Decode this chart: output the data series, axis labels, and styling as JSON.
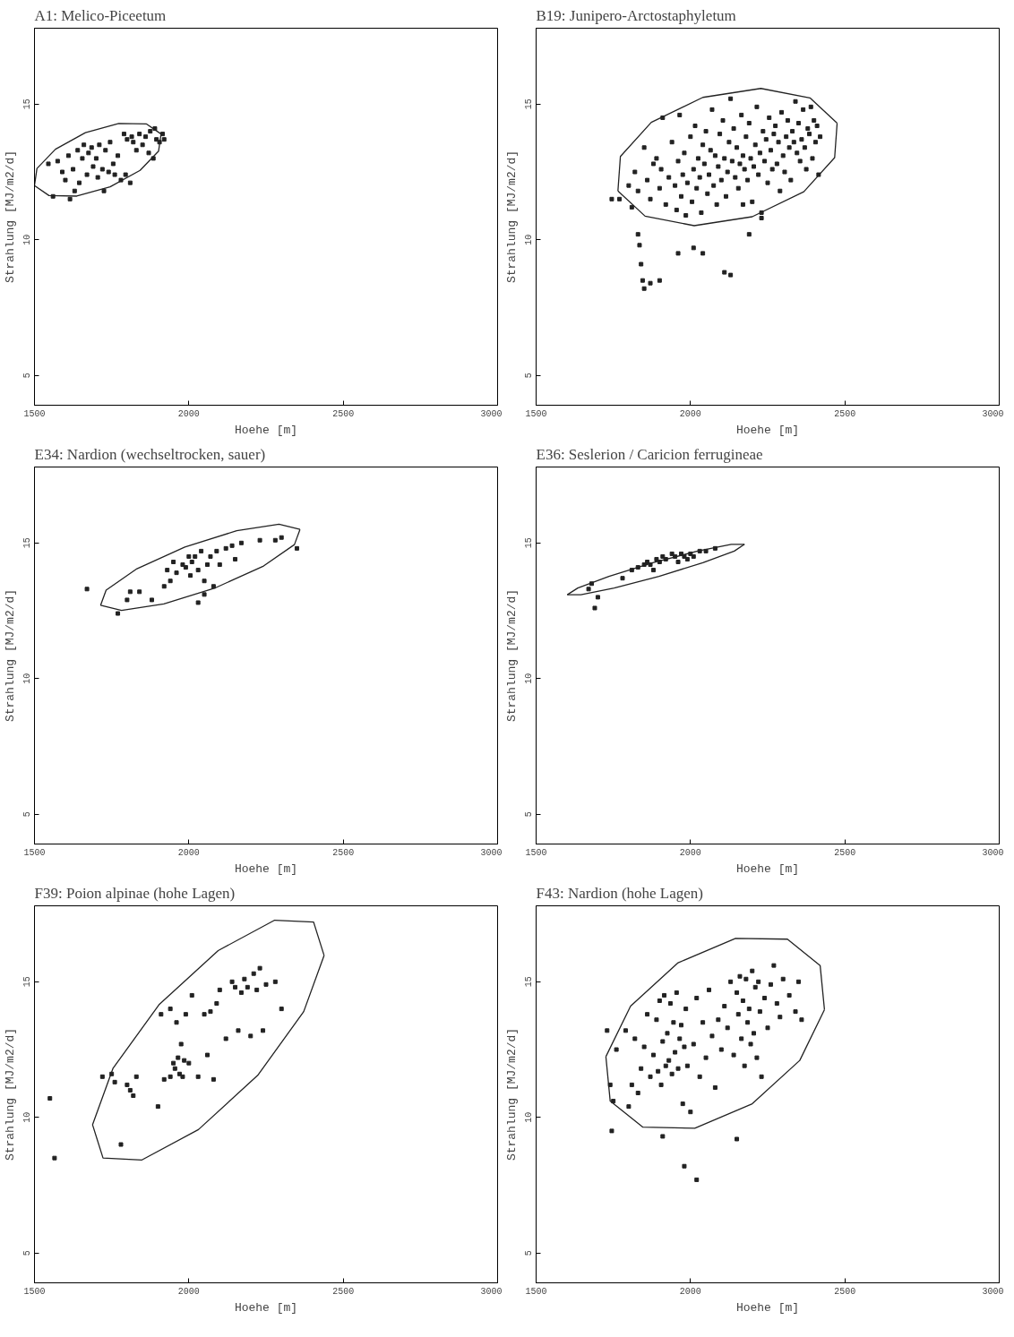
{
  "chart_data": [
    {
      "type": "scatter",
      "title": "A1: Melico-Piceetum",
      "xlabel": "Hoehe [m]",
      "ylabel": "Strahlung [MJ/m2/d]",
      "xlim": [
        1500,
        3000
      ],
      "ylim": [
        3.9,
        17.8
      ],
      "xticks": [
        1500,
        2000,
        2500,
        3000
      ],
      "yticks": [
        5,
        10,
        15
      ],
      "grid": false,
      "marker": "square",
      "series": [
        {
          "type": "scatter",
          "color": "#222222",
          "x": [
            1545,
            1560,
            1575,
            1590,
            1600,
            1610,
            1615,
            1625,
            1630,
            1640,
            1645,
            1655,
            1660,
            1670,
            1675,
            1685,
            1690,
            1700,
            1705,
            1710,
            1720,
            1725,
            1730,
            1740,
            1745,
            1755,
            1760,
            1770,
            1780,
            1790,
            1795,
            1800,
            1810,
            1815,
            1820,
            1830,
            1840,
            1850,
            1860,
            1870,
            1875,
            1885,
            1890,
            1895,
            1905,
            1915,
            1920
          ],
          "values": [
            12.8,
            11.6,
            12.9,
            12.5,
            12.2,
            13.1,
            11.5,
            12.6,
            11.8,
            13.3,
            12.1,
            13.0,
            13.5,
            12.4,
            13.2,
            13.4,
            12.7,
            13.0,
            12.3,
            13.5,
            12.6,
            11.8,
            13.3,
            12.5,
            13.6,
            12.8,
            12.4,
            13.1,
            12.2,
            13.9,
            12.4,
            13.7,
            12.1,
            13.8,
            13.6,
            13.3,
            13.9,
            13.5,
            13.8,
            13.2,
            14.0,
            13.0,
            14.1,
            13.7,
            13.6,
            13.9,
            13.7
          ]
        },
        {
          "type": "line",
          "marker": "none",
          "color": "#222222",
          "x": [
            1500,
            1508,
            1568,
            1665,
            1773,
            1863,
            1910
          ],
          "values": [
            12.0,
            12.63,
            13.34,
            13.95,
            14.29,
            14.27,
            13.9
          ]
        },
        {
          "type": "line",
          "marker": "none",
          "color": "#222222",
          "x": [
            1500,
            1547,
            1637,
            1745,
            1842,
            1902,
            1910
          ],
          "values": [
            12.0,
            11.63,
            11.61,
            11.95,
            12.56,
            13.27,
            13.9
          ]
        }
      ]
    },
    {
      "type": "scatter",
      "title": "B19: Junipero-Arctostaphyletum",
      "xlabel": "Hoehe [m]",
      "ylabel": "Strahlung [MJ/m2/d]",
      "xlim": [
        1500,
        3000
      ],
      "ylim": [
        3.9,
        17.8
      ],
      "xticks": [
        1500,
        2000,
        2500,
        3000
      ],
      "yticks": [
        5,
        10,
        15
      ],
      "grid": false,
      "marker": "square",
      "series": [
        {
          "type": "scatter",
          "color": "#222222",
          "x": [
            1800,
            1810,
            1820,
            1830,
            1850,
            1860,
            1870,
            1880,
            1890,
            1900,
            1905,
            1910,
            1920,
            1930,
            1940,
            1950,
            1955,
            1960,
            1965,
            1970,
            1975,
            1980,
            1985,
            1990,
            2000,
            2005,
            2010,
            2015,
            2020,
            2025,
            2030,
            2035,
            2040,
            2045,
            2050,
            2055,
            2060,
            2065,
            2070,
            2075,
            2080,
            2085,
            2090,
            2095,
            2100,
            2105,
            2110,
            2115,
            2120,
            2125,
            2130,
            2135,
            2140,
            2145,
            2150,
            2155,
            2160,
            2165,
            2170,
            2175,
            2180,
            2185,
            2190,
            2195,
            2200,
            2205,
            2210,
            2215,
            2220,
            2225,
            2230,
            2235,
            2240,
            2245,
            2250,
            2255,
            2260,
            2265,
            2270,
            2275,
            2280,
            2285,
            2290,
            2295,
            2300,
            2305,
            2310,
            2315,
            2320,
            2325,
            2330,
            2335,
            2340,
            2345,
            2350,
            2355,
            2360,
            2365,
            2370,
            2375,
            2380,
            2385,
            2390,
            2395,
            2400,
            2405,
            2410,
            2415,
            2420,
            2230,
            2170,
            1830,
            1835,
            1840,
            1845,
            1850,
            1870,
            1900,
            1960,
            2010,
            2040,
            2110,
            2130,
            2190,
            1745,
            1770
          ],
          "values": [
            12.0,
            11.2,
            12.5,
            11.8,
            13.4,
            12.2,
            11.5,
            12.8,
            13.0,
            11.9,
            12.6,
            14.5,
            11.3,
            12.3,
            13.6,
            12.0,
            11.1,
            12.9,
            14.6,
            11.6,
            12.4,
            13.2,
            10.9,
            12.1,
            13.8,
            11.4,
            12.6,
            14.2,
            11.9,
            13.0,
            12.3,
            11.0,
            13.5,
            12.8,
            14.0,
            11.7,
            12.4,
            13.3,
            14.8,
            12.0,
            13.1,
            11.3,
            12.7,
            13.9,
            12.2,
            14.4,
            13.0,
            11.6,
            12.5,
            13.6,
            15.2,
            12.9,
            14.1,
            12.3,
            13.4,
            11.9,
            12.8,
            14.6,
            13.1,
            12.6,
            13.8,
            12.2,
            14.3,
            13.0,
            11.4,
            12.7,
            13.5,
            14.9,
            12.4,
            13.2,
            11.0,
            14.0,
            12.9,
            13.7,
            12.1,
            14.5,
            13.3,
            12.6,
            13.9,
            14.2,
            12.8,
            13.6,
            11.8,
            14.7,
            13.1,
            12.5,
            13.8,
            14.4,
            13.4,
            12.2,
            14.0,
            13.6,
            15.1,
            13.2,
            14.3,
            12.9,
            13.7,
            14.8,
            13.4,
            12.6,
            14.1,
            13.9,
            14.9,
            13.0,
            14.4,
            13.6,
            14.2,
            12.4,
            13.8,
            10.8,
            11.3,
            10.2,
            9.8,
            9.1,
            8.5,
            8.2,
            8.4,
            8.5,
            9.5,
            9.7,
            9.5,
            8.8,
            8.7,
            10.2,
            11.5,
            11.5
          ]
        },
        {
          "type": "line",
          "marker": "none",
          "color": "#222222",
          "x": [
            1765,
            1773,
            1873,
            2040,
            2228,
            2387,
            2475
          ],
          "values": [
            11.8,
            13.07,
            14.33,
            15.25,
            15.58,
            15.23,
            14.3
          ]
        },
        {
          "type": "line",
          "marker": "none",
          "color": "#222222",
          "x": [
            1765,
            1853,
            2012,
            2200,
            2367,
            2467,
            2475
          ],
          "values": [
            11.8,
            10.87,
            10.52,
            10.85,
            11.77,
            13.03,
            14.3
          ]
        }
      ]
    },
    {
      "type": "scatter",
      "title": "E34: Nardion (wechseltrocken, sauer)",
      "xlabel": "Hoehe [m]",
      "ylabel": "Strahlung [MJ/m2/d]",
      "xlim": [
        1500,
        3000
      ],
      "ylim": [
        3.9,
        17.8
      ],
      "xticks": [
        1500,
        2000,
        2500,
        3000
      ],
      "yticks": [
        5,
        10,
        15
      ],
      "grid": false,
      "marker": "square",
      "series": [
        {
          "type": "scatter",
          "color": "#222222",
          "x": [
            1670,
            1770,
            1800,
            1810,
            1840,
            1880,
            1920,
            1930,
            1940,
            1950,
            1960,
            1980,
            1990,
            2000,
            2005,
            2010,
            2020,
            2030,
            2030,
            2040,
            2050,
            2050,
            2060,
            2070,
            2080,
            2090,
            2100,
            2120,
            2140,
            2150,
            2170,
            2230,
            2280,
            2300,
            2350
          ],
          "values": [
            13.3,
            12.4,
            12.9,
            13.2,
            13.2,
            12.9,
            13.4,
            14.0,
            13.6,
            14.3,
            13.9,
            14.2,
            14.1,
            14.5,
            13.8,
            14.3,
            14.5,
            14.0,
            12.8,
            14.7,
            13.6,
            13.1,
            14.2,
            14.5,
            13.4,
            14.7,
            14.2,
            14.8,
            14.9,
            14.4,
            15.0,
            15.1,
            15.1,
            15.2,
            14.8
          ]
        },
        {
          "type": "line",
          "marker": "none",
          "color": "#222222",
          "x": [
            1714,
            1732,
            1832,
            1987,
            2155,
            2292,
            2360
          ],
          "values": [
            12.7,
            13.26,
            14.05,
            14.85,
            15.45,
            15.69,
            15.5
          ]
        },
        {
          "type": "line",
          "marker": "none",
          "color": "#222222",
          "x": [
            1714,
            1782,
            1919,
            2087,
            2242,
            2342,
            2360
          ],
          "values": [
            12.7,
            12.51,
            12.75,
            13.35,
            14.15,
            14.94,
            15.5
          ]
        }
      ]
    },
    {
      "type": "scatter",
      "title": "E36: Seslerion / Caricion ferrugineae",
      "xlabel": "Hoehe [m]",
      "ylabel": "Strahlung [MJ/m2/d]",
      "xlim": [
        1500,
        3000
      ],
      "ylim": [
        3.9,
        17.8
      ],
      "xticks": [
        1500,
        2000,
        2500,
        3000
      ],
      "yticks": [
        5,
        10,
        15
      ],
      "grid": false,
      "marker": "square",
      "series": [
        {
          "type": "scatter",
          "color": "#222222",
          "x": [
            1670,
            1680,
            1690,
            1700,
            1780,
            1810,
            1830,
            1850,
            1860,
            1870,
            1880,
            1890,
            1900,
            1910,
            1920,
            1940,
            1950,
            1960,
            1970,
            1980,
            1990,
            2000,
            2010,
            2030,
            2050,
            2080
          ],
          "values": [
            13.3,
            13.5,
            12.6,
            13.0,
            13.7,
            14.0,
            14.1,
            14.2,
            14.3,
            14.2,
            14.0,
            14.4,
            14.3,
            14.5,
            14.4,
            14.6,
            14.5,
            14.3,
            14.6,
            14.5,
            14.4,
            14.6,
            14.5,
            14.7,
            14.7,
            14.8
          ]
        },
        {
          "type": "line",
          "marker": "none",
          "color": "#222222",
          "x": [
            1601,
            1635,
            1736,
            1878,
            2023,
            2132,
            2175
          ],
          "values": [
            13.09,
            13.34,
            13.77,
            14.27,
            14.7,
            14.95,
            14.95
          ]
        },
        {
          "type": "line",
          "marker": "none",
          "color": "#222222",
          "x": [
            1601,
            1645,
            1753,
            1898,
            2040,
            2142,
            2175
          ],
          "values": [
            13.09,
            13.09,
            13.34,
            13.77,
            14.27,
            14.7,
            14.95
          ]
        }
      ]
    },
    {
      "type": "scatter",
      "title": "F39: Poion alpinae (hohe Lagen)",
      "xlabel": "Hoehe [m]",
      "ylabel": "Strahlung [MJ/m2/d]",
      "xlim": [
        1500,
        3000
      ],
      "ylim": [
        3.9,
        17.8
      ],
      "xticks": [
        1500,
        2000,
        2500,
        3000
      ],
      "yticks": [
        5,
        10,
        15
      ],
      "grid": false,
      "marker": "square",
      "series": [
        {
          "type": "scatter",
          "color": "#222222",
          "x": [
            1550,
            1565,
            1720,
            1750,
            1760,
            1780,
            1800,
            1810,
            1820,
            1830,
            1900,
            1910,
            1920,
            1940,
            1940,
            1950,
            1955,
            1960,
            1965,
            1970,
            1975,
            1980,
            1985,
            1990,
            2000,
            2010,
            2030,
            2050,
            2060,
            2070,
            2080,
            2090,
            2100,
            2120,
            2140,
            2150,
            2160,
            2170,
            2180,
            2190,
            2200,
            2210,
            2220,
            2230,
            2240,
            2250,
            2280,
            2300
          ],
          "values": [
            10.7,
            8.5,
            11.5,
            11.6,
            11.3,
            9.0,
            11.2,
            11.0,
            10.8,
            11.5,
            10.4,
            13.8,
            11.4,
            11.5,
            14.0,
            12.0,
            11.8,
            13.5,
            12.2,
            11.6,
            12.7,
            11.5,
            12.1,
            13.8,
            12.0,
            14.5,
            11.5,
            13.8,
            12.3,
            13.9,
            11.4,
            14.2,
            14.7,
            12.9,
            15.0,
            14.8,
            13.2,
            14.6,
            15.1,
            14.8,
            13.0,
            15.3,
            14.7,
            15.5,
            13.2,
            14.9,
            15.0,
            14.0
          ]
        },
        {
          "type": "line",
          "marker": "none",
          "color": "#222222",
          "x": [
            1688,
            1754,
            1903,
            2095,
            2278,
            2404,
            2438
          ],
          "values": [
            9.73,
            11.8,
            14.15,
            16.15,
            17.27,
            17.2,
            15.97
          ]
        },
        {
          "type": "line",
          "marker": "none",
          "color": "#222222",
          "x": [
            1688,
            1722,
            1848,
            2031,
            2223,
            2372,
            2438
          ],
          "values": [
            9.73,
            8.5,
            8.43,
            9.55,
            11.55,
            13.9,
            15.97
          ]
        }
      ]
    },
    {
      "type": "scatter",
      "title": "F43: Nardion (hohe Lagen)",
      "xlabel": "Hoehe [m]",
      "ylabel": "Strahlung [MJ/m2/d]",
      "xlim": [
        1500,
        3000
      ],
      "ylim": [
        3.9,
        17.8
      ],
      "xticks": [
        1500,
        2000,
        2500,
        3000
      ],
      "yticks": [
        5,
        10,
        15
      ],
      "grid": false,
      "marker": "square",
      "series": [
        {
          "type": "scatter",
          "color": "#222222",
          "x": [
            1760,
            1790,
            1800,
            1810,
            1820,
            1830,
            1840,
            1850,
            1860,
            1870,
            1880,
            1890,
            1895,
            1900,
            1905,
            1910,
            1915,
            1920,
            1925,
            1930,
            1935,
            1940,
            1945,
            1950,
            1955,
            1960,
            1965,
            1970,
            1975,
            1980,
            1985,
            1990,
            2000,
            2010,
            2020,
            2030,
            2040,
            2050,
            2060,
            2070,
            2080,
            2090,
            2100,
            2110,
            2120,
            2130,
            2140,
            2150,
            2155,
            2160,
            2165,
            2170,
            2175,
            2180,
            2185,
            2190,
            2195,
            2200,
            2205,
            2210,
            2215,
            2220,
            2225,
            2230,
            2240,
            2250,
            2260,
            2270,
            2280,
            2290,
            2300,
            2320,
            2340,
            2350,
            2360,
            1730,
            1740,
            1745,
            1750,
            1980,
            2020,
            2150,
            1910
          ],
          "values": [
            12.5,
            13.2,
            10.4,
            11.2,
            12.9,
            10.9,
            11.8,
            12.6,
            13.8,
            11.5,
            12.3,
            13.6,
            11.7,
            14.3,
            11.2,
            12.8,
            14.5,
            11.9,
            13.1,
            12.1,
            14.2,
            11.6,
            13.5,
            12.4,
            14.6,
            11.8,
            12.9,
            13.4,
            10.5,
            12.6,
            14.0,
            11.9,
            10.2,
            12.7,
            14.4,
            11.5,
            13.5,
            12.2,
            14.7,
            13.0,
            11.1,
            13.6,
            12.5,
            14.1,
            13.3,
            15.0,
            12.3,
            14.6,
            13.8,
            15.2,
            12.9,
            14.3,
            11.9,
            15.1,
            13.5,
            14.0,
            12.7,
            15.4,
            13.1,
            14.8,
            12.2,
            15.0,
            13.9,
            11.5,
            14.4,
            13.3,
            14.9,
            15.6,
            14.2,
            13.7,
            15.1,
            14.5,
            13.9,
            15.0,
            13.6,
            13.2,
            11.2,
            9.5,
            10.6,
            8.2,
            7.7,
            9.2,
            9.3
          ]
        },
        {
          "type": "line",
          "marker": "none",
          "color": "#222222",
          "x": [
            1726,
            1806,
            1960,
            2146,
            2314,
            2420,
            2434
          ],
          "values": [
            12.24,
            14.1,
            15.7,
            16.6,
            16.57,
            15.6,
            13.97
          ]
        },
        {
          "type": "line",
          "marker": "none",
          "color": "#222222",
          "x": [
            1726,
            1740,
            1846,
            2014,
            2200,
            2354,
            2434
          ],
          "values": [
            12.24,
            10.6,
            9.64,
            9.6,
            10.5,
            12.1,
            13.97
          ]
        }
      ]
    }
  ]
}
